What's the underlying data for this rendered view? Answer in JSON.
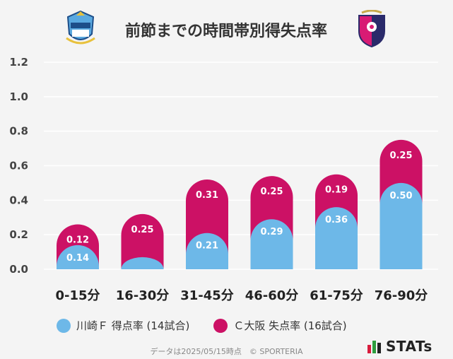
{
  "header": {
    "title": "前節までの時間帯別得失点率",
    "left_logo": "kawasaki-frontale-crest",
    "right_logo": "cerezo-osaka-crest"
  },
  "colors": {
    "scored": "#6db8e8",
    "conceded": "#cc1165",
    "background": "#f4f4f4",
    "gridline": "#ffffff"
  },
  "chart_data": {
    "type": "bar",
    "stacked": true,
    "categories": [
      "0-15分",
      "16-30分",
      "31-45分",
      "46-60分",
      "61-75分",
      "76-90分"
    ],
    "series": [
      {
        "name": "川崎Ｆ 得点率 (14試合)",
        "values": [
          0.14,
          0.07,
          0.21,
          0.29,
          0.36,
          0.5
        ],
        "labels": [
          "0.14",
          "",
          "0.21",
          "0.29",
          "0.36",
          "0.50"
        ]
      },
      {
        "name": "Ｃ大阪 失点率 (16試合)",
        "values": [
          0.12,
          0.25,
          0.31,
          0.25,
          0.19,
          0.25
        ],
        "labels": [
          "0.12",
          "0.25",
          "0.31",
          "0.25",
          "0.19",
          "0.25"
        ]
      }
    ],
    "ylim": [
      0,
      1.2
    ],
    "yticks": [
      "0.0",
      "0.2",
      "0.4",
      "0.6",
      "0.8",
      "1.0",
      "1.2"
    ],
    "grid": true,
    "legend_position": "bottom"
  },
  "legend": {
    "scored_label": "川崎Ｆ 得点率 (14試合)",
    "conceded_label": "Ｃ大阪 失点率 (16試合)"
  },
  "footer": {
    "note": "データは2025/05/15時点　© SPORTERIA",
    "brand": "STATs"
  }
}
